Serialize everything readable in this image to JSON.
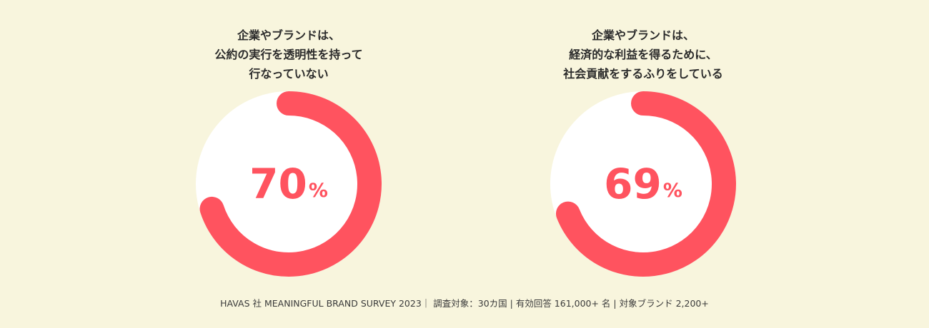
{
  "chart_data": [
    {
      "type": "pie",
      "title_lines": [
        "企業やブランドは、",
        "公約の実行を透明性を持って",
        "行なっていない"
      ],
      "value": 70,
      "unit": "%",
      "max": 100,
      "display_value": "70",
      "colors": {
        "accent": "#ff535f",
        "track": "#ffffff"
      }
    },
    {
      "type": "pie",
      "title_lines": [
        "企業やブランドは、",
        "経済的な利益を得るために、",
        "社会貢献をするふりをしている"
      ],
      "value": 69,
      "unit": "%",
      "max": 100,
      "display_value": "69",
      "colors": {
        "accent": "#ff535f",
        "track": "#ffffff"
      }
    }
  ],
  "footer": {
    "note": "HAVAS 社 MEANINGFUL BRAND SURVEY 2023｜ 調査対象：30カ国 | 有効回答 161,000+ 名 | 対象ブランド 2,200+"
  },
  "colors": {
    "background": "#f8f5dd",
    "title_text": "#2b2b2b",
    "accent": "#ff535f"
  }
}
